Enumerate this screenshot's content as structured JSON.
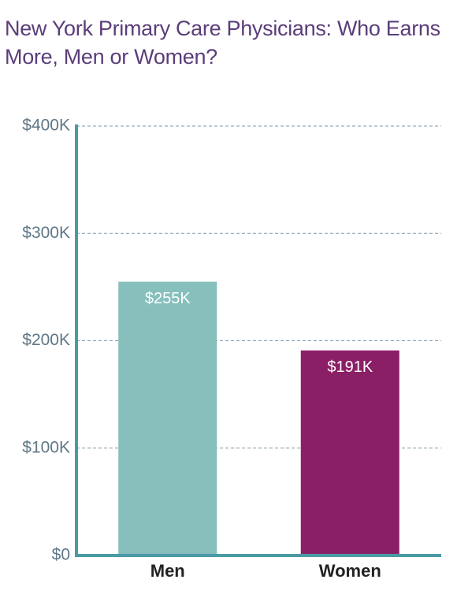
{
  "chart_data": {
    "type": "bar",
    "title": "New York Primary Care Physicians: Who Earns More, Men or Women?",
    "categories": [
      "Men",
      "Women"
    ],
    "values": [
      255000,
      191000
    ],
    "value_labels": [
      "$255K",
      "$191K"
    ],
    "colors": [
      "#86bfbc",
      "#8b1f66"
    ],
    "ylim": [
      0,
      400000
    ],
    "yticks": [
      {
        "value": 0,
        "label": "$0"
      },
      {
        "value": 100000,
        "label": "$100K"
      },
      {
        "value": 200000,
        "label": "$200K"
      },
      {
        "value": 300000,
        "label": "$300K"
      },
      {
        "value": 400000,
        "label": "$400K"
      }
    ],
    "grid": true
  }
}
